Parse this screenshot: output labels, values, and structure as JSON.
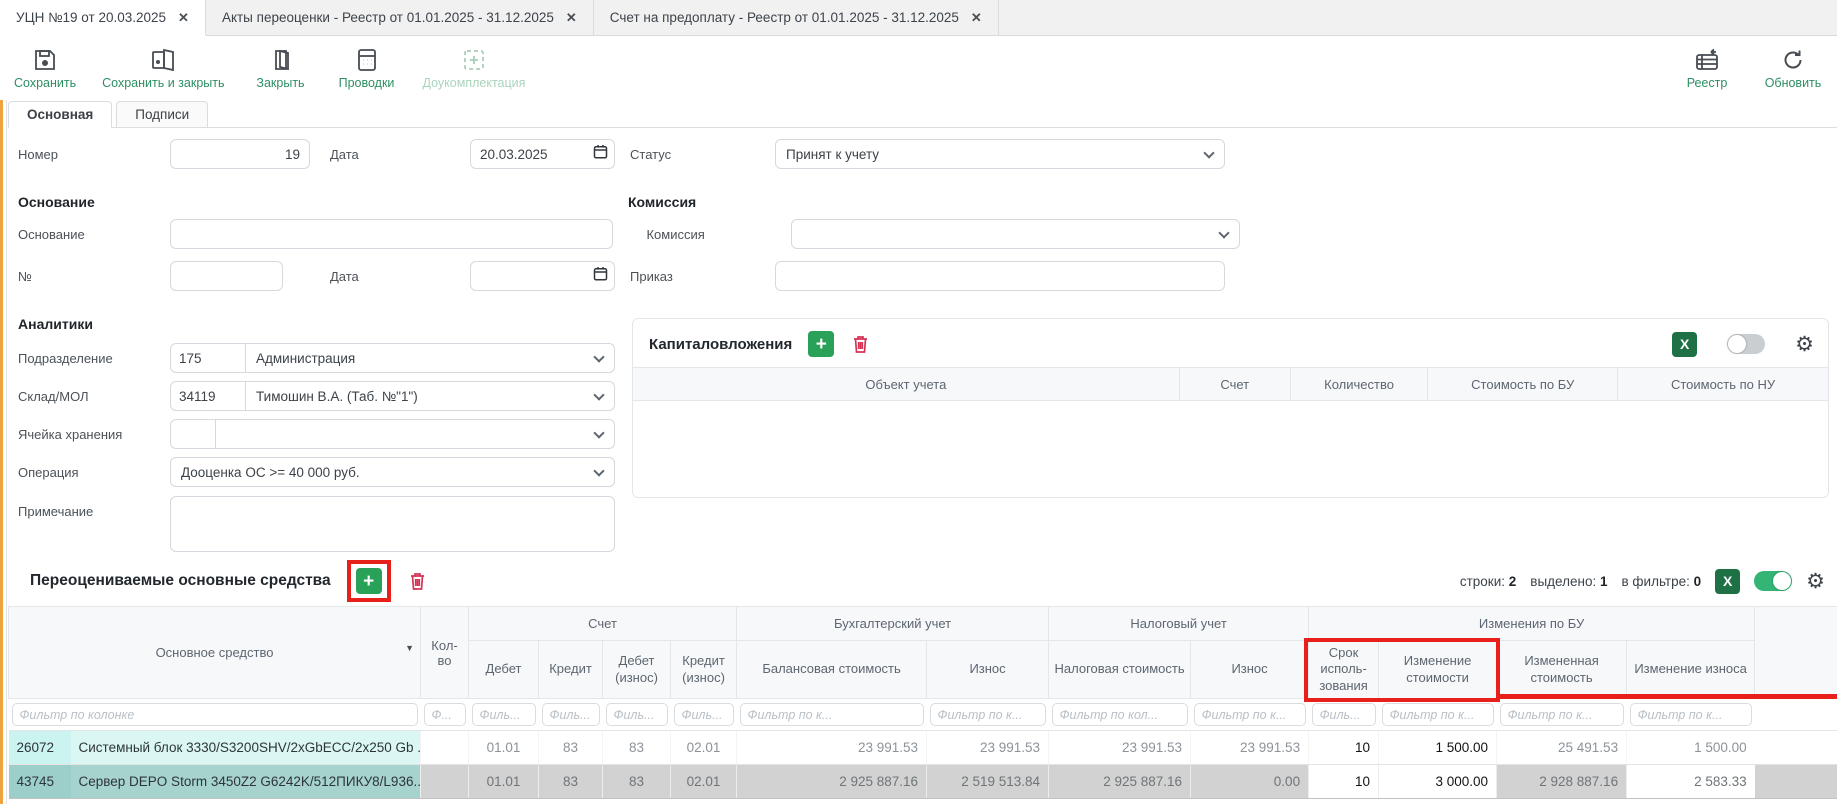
{
  "window_tabs": [
    {
      "label": "УЦН №19 от 20.03.2025",
      "close": "✕"
    },
    {
      "label": "Акты переоценки - Реестр от 01.01.2025 - 31.12.2025",
      "close": "✕"
    },
    {
      "label": "Счет на предоплату - Реестр от 01.01.2025 - 31.12.2025",
      "close": "✕"
    }
  ],
  "toolbar": {
    "save": "Сохранить",
    "save_close": "Сохранить и закрыть",
    "close": "Закрыть",
    "postings": "Проводки",
    "dokompl": "Доукомплектация",
    "registry": "Реестр",
    "refresh": "Обновить"
  },
  "form_tabs": {
    "main": "Основная",
    "signatures": "Подписи"
  },
  "form": {
    "number_label": "Номер",
    "number_value": "19",
    "date_label": "Дата",
    "date_value": "20.03.2025",
    "status_label": "Статус",
    "status_value": "Принят к учету",
    "basis_heading": "Основание",
    "basis_label": "Основание",
    "basis_value": "",
    "basis_no_label": "№",
    "basis_no_value": "",
    "basis_date_label": "Дата",
    "basis_date_value": "",
    "commission_heading": "Комиссия",
    "commission_label": "Комиссия",
    "commission_value": "",
    "order_label": "Приказ",
    "order_value": "",
    "analytics_heading": "Аналитики",
    "division_label": "Подразделение",
    "division_code": "175",
    "division_name": "Администрация",
    "warehouse_label": "Склад/МОЛ",
    "warehouse_code": "34119",
    "warehouse_name": "Тимошин В.А. (Таб. №\"1\")",
    "cell_label": "Ячейка хранения",
    "cell_code": "",
    "cell_name": "",
    "operation_label": "Операция",
    "operation_value": "Дооценка ОС >= 40 000 руб.",
    "note_label": "Примечание",
    "note_value": ""
  },
  "capital": {
    "title": "Капиталовложения",
    "columns": [
      "Объект учета",
      "Счет",
      "Количество",
      "Стоимость по БУ",
      "Стоимость по НУ"
    ]
  },
  "fa_table": {
    "title": "Переоцениваемые основные средства",
    "stats": [
      {
        "label": "строки:",
        "value": "2"
      },
      {
        "label": "выделено:",
        "value": "1"
      },
      {
        "label": "в фильтре:",
        "value": "0"
      }
    ],
    "groups": {
      "account": "Счет",
      "accounting": "Бухгалтерский учет",
      "tax": "Налоговый учет",
      "changes": "Изменения по БУ"
    },
    "columns": [
      {
        "key": "os",
        "label": "Основное средство",
        "filter": "Фильтр по колонке"
      },
      {
        "key": "kolvo",
        "label": "Кол-во",
        "filter": "Ф..."
      },
      {
        "key": "debet",
        "label": "Дебет",
        "filter": "Филь..."
      },
      {
        "key": "kredit",
        "label": "Кредит",
        "filter": "Филь..."
      },
      {
        "key": "debet-iznos",
        "label": "Дебет (износ)",
        "filter": "Филь..."
      },
      {
        "key": "kredit-iznos",
        "label": "Кредит (износ)",
        "filter": "Филь..."
      },
      {
        "key": "balans-stoimost",
        "label": "Балансовая стоимость",
        "filter": "Фильтр по к..."
      },
      {
        "key": "iznos-bu",
        "label": "Износ",
        "filter": "Фильтр по к..."
      },
      {
        "key": "nalog-stoimost",
        "label": "Налоговая стоимость",
        "filter": "Фильтр по кол..."
      },
      {
        "key": "iznos-nu",
        "label": "Износ",
        "filter": "Фильтр по к..."
      },
      {
        "key": "srok",
        "label": "Срок исполь­зования",
        "filter": "Филь..."
      },
      {
        "key": "izm-stoimosti",
        "label": "Изменение стоимости",
        "filter": "Фильтр по к..."
      },
      {
        "key": "izmenennaya-stoimost",
        "label": "Измененная стоимость",
        "filter": "Фильтр по к..."
      },
      {
        "key": "izm-iznosa",
        "label": "Изменение износа",
        "filter": "Фильтр по к..."
      }
    ],
    "rows": [
      {
        "id": "26072",
        "name": "Системный блок 3330/S3200SHV/2xGbECC/2x250 Gb ...",
        "selected": false,
        "values": [
          "",
          "01.01",
          "83",
          "83",
          "02.01",
          "23 991.53",
          "23 991.53",
          "23 991.53",
          "23 991.53",
          "10",
          "1 500.00",
          "25 491.53",
          "1 500.00"
        ]
      },
      {
        "id": "43745",
        "name": "Сервер DEPO Storm 3450Z2 G6242K/512ПИКУ8/L936...",
        "selected": true,
        "values": [
          "",
          "01.01",
          "83",
          "83",
          "02.01",
          "2 925 887.16",
          "2 519 513.84",
          "2 925 887.16",
          "0.00",
          "10",
          "3 000.00",
          "2 928 887.16",
          "2 583.33"
        ]
      }
    ]
  },
  "colors": {
    "accent_green": "#2e8f62",
    "annotation_red": "#e8201c",
    "row_highlight": "#cbf3ef",
    "row_selected": "#9ccfc9",
    "toggle_on": "#34b575"
  }
}
